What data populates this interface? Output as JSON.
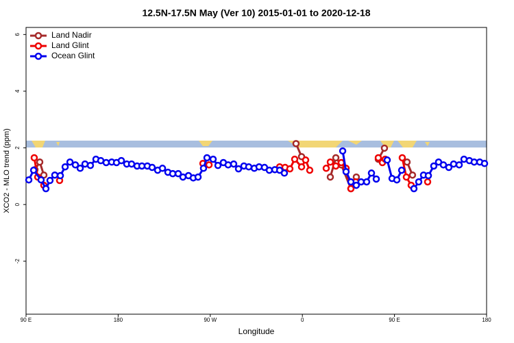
{
  "chart_data": {
    "type": "line",
    "title": "12.5N-17.5N May (Ver 10)   2015-01-01 to 2020-12-18",
    "x_label": "Longitude",
    "y_label": "XCO2 - MLO trend (ppm)",
    "xlim": [
      90,
      540
    ],
    "xticks": [
      {
        "value": 90,
        "label": "90 E"
      },
      {
        "value": 180,
        "label": "180"
      },
      {
        "value": 270,
        "label": "90 W"
      },
      {
        "value": 360,
        "label": "0"
      },
      {
        "value": 450,
        "label": "90 E"
      },
      {
        "value": 540,
        "label": "180"
      }
    ],
    "ylim": [
      -3.87,
      6.25
    ],
    "yticks": [
      -2,
      0,
      2,
      4,
      6
    ],
    "legend": "top-left",
    "series": [
      {
        "name": "Land Nadir",
        "color": "#a52a2a",
        "x": [
          98.7,
          103.4,
          107.4,
          230,
          353.8,
          359.2,
          380,
          387.3,
          392.7,
          398.0,
          407.4,
          412.7,
          425,
          434.2,
          440.2,
          450,
          462.3,
          467.6
        ],
        "values": [
          1.23,
          1.5,
          1.04,
          null,
          2.15,
          1.69,
          null,
          0.97,
          1.65,
          1.4,
          0.56,
          0.97,
          null,
          1.6,
          1.99,
          null,
          1.5,
          1.04
        ]
      },
      {
        "name": "Land Glint",
        "color": "#ee0000",
        "x": [
          98.0,
          101.4,
          107.4,
          115,
          122.8,
          200,
          262.8,
          268.8,
          300,
          337.8,
          343.1,
          347.8,
          352.5,
          359.2,
          363.2,
          367.2,
          375,
          383.3,
          387.3,
          392.7,
          398.0,
          402.7,
          407.4,
          412.1,
          425,
          434.2,
          438.2,
          440.9,
          450,
          457.6,
          461.6,
          466.3,
          475,
          482.4
        ],
        "values": [
          1.65,
          0.97,
          0.68,
          null,
          0.85,
          null,
          1.45,
          1.4,
          null,
          1.33,
          1.31,
          1.26,
          1.6,
          1.33,
          1.57,
          1.21,
          null,
          1.28,
          1.5,
          1.36,
          1.48,
          1.28,
          0.56,
          0.8,
          null,
          1.65,
          1.48,
          1.6,
          null,
          1.65,
          0.97,
          0.68,
          null,
          0.8
        ]
      },
      {
        "name": "Ocean Glint",
        "color": "#0000ee",
        "x": [
          92.7,
          97.4,
          104.7,
          109.4,
          113.4,
          118.1,
          123.5,
          128.2,
          132.9,
          138.2,
          142.9,
          147.6,
          152.9,
          158.3,
          163.0,
          168.3,
          173.7,
          178.4,
          183.1,
          188.4,
          193.1,
          198.5,
          203.2,
          208.5,
          213.2,
          218.6,
          223.3,
          228.6,
          233.3,
          238.7,
          243.3,
          248.7,
          253.4,
          258.1,
          263.4,
          266.8,
          272.8,
          277.5,
          282.8,
          287.5,
          292.9,
          297.6,
          302.9,
          307.6,
          313.0,
          317.7,
          323.0,
          327.7,
          333.1,
          337.8,
          342.4,
          370,
          399.4,
          402.7,
          407.4,
          412.7,
          417.4,
          422.8,
          427.5,
          432.2,
          437,
          442.9,
          447.6,
          452.3,
          457.0,
          463,
          469.0,
          473.7,
          478.4,
          483.1,
          488.4,
          493.1,
          497.8,
          503.1,
          507.8,
          513.2,
          517.9,
          523.2,
          527.9,
          533.3,
          538.0
        ],
        "values": [
          0.87,
          1.21,
          0.87,
          0.56,
          0.85,
          1.04,
          1.02,
          1.33,
          1.5,
          1.4,
          1.28,
          1.43,
          1.38,
          1.6,
          1.55,
          1.48,
          1.5,
          1.48,
          1.55,
          1.43,
          1.43,
          1.36,
          1.36,
          1.36,
          1.31,
          1.21,
          1.28,
          1.14,
          1.09,
          1.09,
          0.97,
          1.02,
          0.94,
          0.97,
          1.28,
          1.65,
          1.6,
          1.38,
          1.48,
          1.4,
          1.43,
          1.26,
          1.36,
          1.33,
          1.28,
          1.33,
          1.31,
          1.21,
          1.23,
          1.21,
          1.11,
          null,
          1.89,
          1.16,
          0.8,
          0.68,
          0.8,
          0.8,
          1.11,
          0.9,
          null,
          1.57,
          0.92,
          0.87,
          1.21,
          null,
          0.56,
          0.8,
          1.04,
          1.02,
          1.36,
          1.5,
          1.4,
          1.31,
          1.43,
          1.4,
          1.6,
          1.55,
          1.5,
          1.5,
          1.45
        ]
      }
    ]
  }
}
